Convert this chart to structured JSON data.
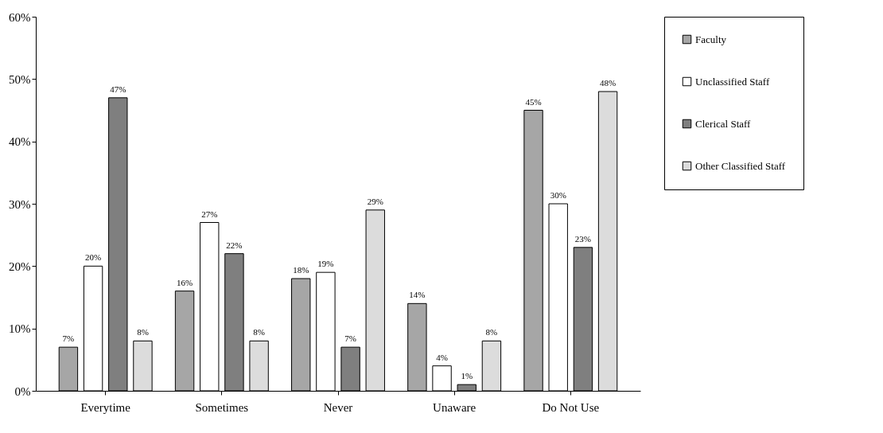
{
  "chart_data": {
    "type": "bar",
    "categories": [
      "Everytime",
      "Sometimes",
      "Never",
      "Unaware",
      "Do Not Use"
    ],
    "series": [
      {
        "name": "Faculty",
        "color": "#a6a6a6",
        "values": [
          7,
          16,
          18,
          14,
          45
        ],
        "value_labels": [
          "7%",
          "16%",
          "18%",
          "14%",
          "45%"
        ]
      },
      {
        "name": "Unclassified Staff",
        "color": "#ffffff",
        "values": [
          20,
          27,
          19,
          4,
          30
        ],
        "value_labels": [
          "20%",
          "27%",
          "19%",
          "4%",
          "30%"
        ]
      },
      {
        "name": "Clerical Staff",
        "color": "#7f7f7f",
        "values": [
          47,
          22,
          7,
          1,
          23
        ],
        "value_labels": [
          "47%",
          "22%",
          "7%",
          "1%",
          "23%"
        ]
      },
      {
        "name": "Other Classified Staff",
        "color": "#dcdcdc",
        "values": [
          8,
          8,
          29,
          8,
          48
        ],
        "value_labels": [
          "8%",
          "8%",
          "29%",
          "8%",
          "48%"
        ]
      }
    ],
    "ylim": [
      0,
      60
    ],
    "yticks": [
      {
        "value": 0,
        "label": "0%"
      },
      {
        "value": 10,
        "label": "10%"
      },
      {
        "value": 20,
        "label": "20%"
      },
      {
        "value": 30,
        "label": "30%"
      },
      {
        "value": 40,
        "label": "40%"
      },
      {
        "value": 50,
        "label": "50%"
      },
      {
        "value": 60,
        "label": "60%"
      }
    ],
    "grid": false,
    "legend": "right"
  }
}
